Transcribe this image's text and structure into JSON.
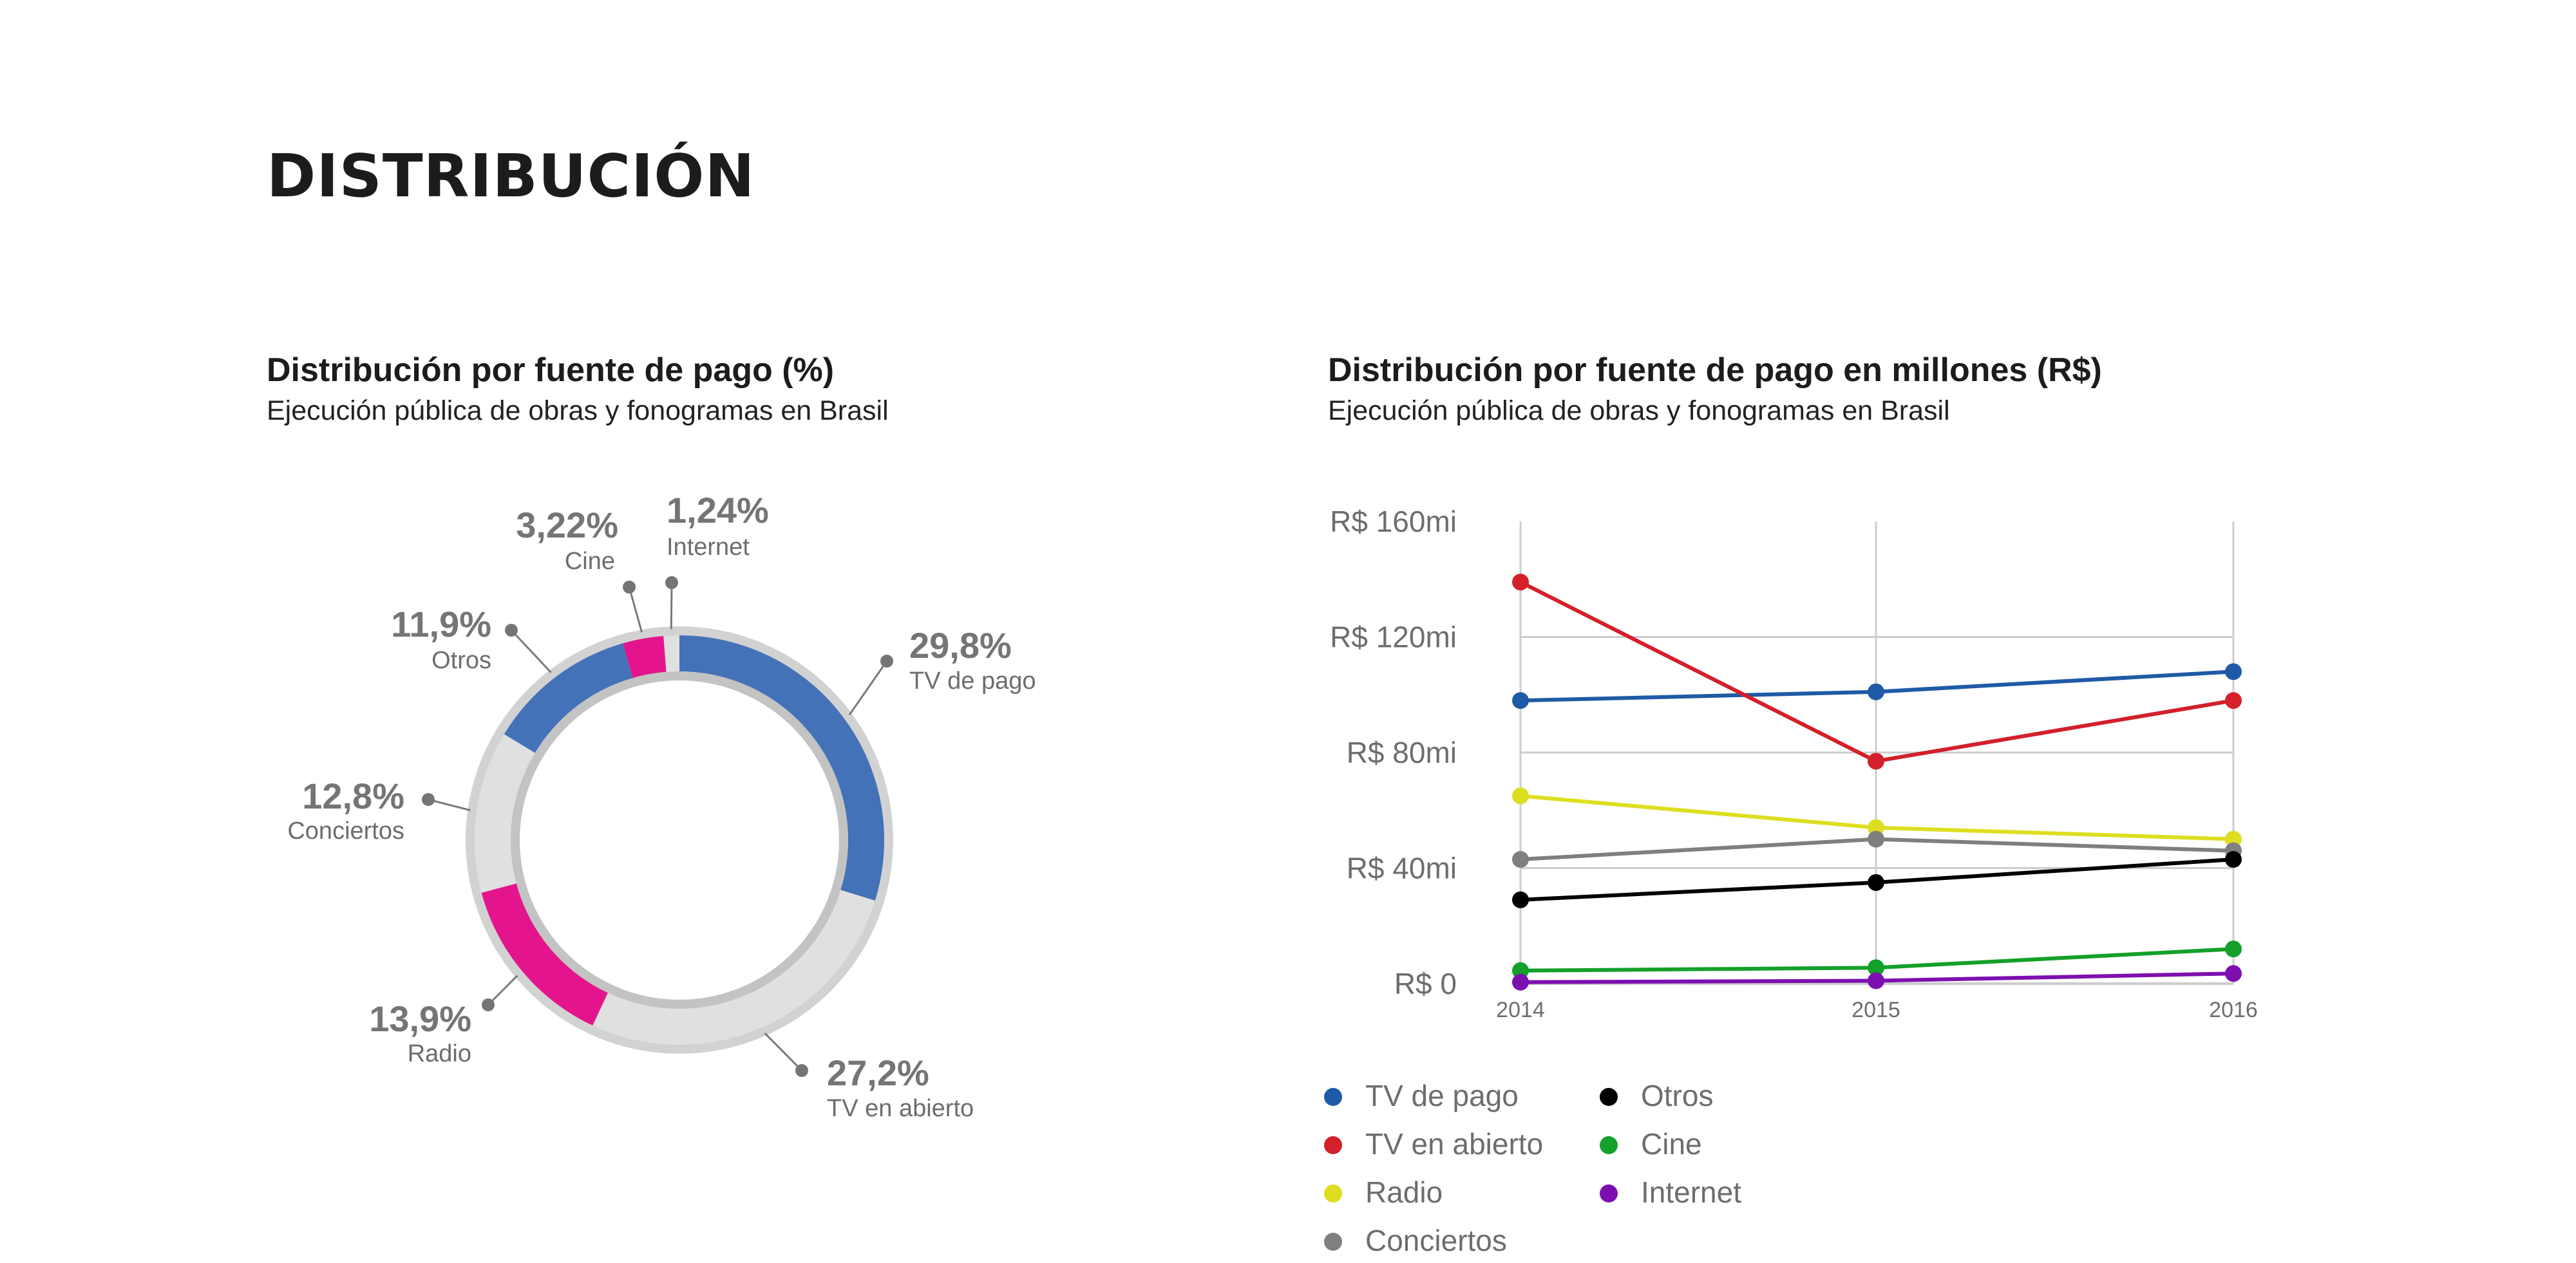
{
  "page": {
    "title": "DISTRIBUCIÓN"
  },
  "chart_data": [
    {
      "type": "pie",
      "title": "Distribución por fuente de pago (%)",
      "subtitle": "Ejecución pública de obras y fonogramas en Brasil",
      "slices": [
        {
          "label": "TV de pago",
          "value": 29.8,
          "display": "29,8%",
          "color": "#4472b8"
        },
        {
          "label": "TV en abierto",
          "value": 27.2,
          "display": "27,2%",
          "color": "#e0e0e0"
        },
        {
          "label": "Radio",
          "value": 13.9,
          "display": "13,9%",
          "color": "#e4158c"
        },
        {
          "label": "Conciertos",
          "value": 12.8,
          "display": "12,8%",
          "color": "#e0e0e0"
        },
        {
          "label": "Otros",
          "value": 11.9,
          "display": "11,9%",
          "color": "#4472b8"
        },
        {
          "label": "Cine",
          "value": 3.22,
          "display": "3,22%",
          "color": "#e4158c"
        },
        {
          "label": "Internet",
          "value": 1.24,
          "display": "1,24%",
          "color": "#e0e0e0"
        }
      ]
    },
    {
      "type": "line",
      "title": "Distribución por fuente de pago en millones (R$)",
      "subtitle": "Ejecución pública de obras y fonogramas en Brasil",
      "x": [
        "2014",
        "2015",
        "2016"
      ],
      "ylim": [
        0,
        160
      ],
      "yticks": [
        0,
        40,
        80,
        120,
        160
      ],
      "ytick_labels": [
        "R$ 0",
        "R$ 40mi",
        "R$ 80mi",
        "R$ 120mi",
        "R$ 160mi"
      ],
      "grid": true,
      "legend_position": "bottom",
      "series": [
        {
          "name": "TV de pago",
          "color": "#1f5aa6",
          "values": [
            98,
            101,
            108
          ]
        },
        {
          "name": "TV en abierto",
          "color": "#d3202a",
          "values": [
            139,
            77,
            98
          ]
        },
        {
          "name": "Radio",
          "color": "#dede20",
          "values": [
            65,
            54,
            50
          ]
        },
        {
          "name": "Conciertos",
          "color": "#7f7f7f",
          "values": [
            43,
            50,
            46
          ]
        },
        {
          "name": "Otros",
          "color": "#000000",
          "values": [
            29,
            35,
            43
          ]
        },
        {
          "name": "Cine",
          "color": "#14a02a",
          "values": [
            4.5,
            5.5,
            12
          ]
        },
        {
          "name": "Internet",
          "color": "#7d0fb0",
          "values": [
            0.5,
            1,
            3.5
          ]
        }
      ]
    }
  ]
}
